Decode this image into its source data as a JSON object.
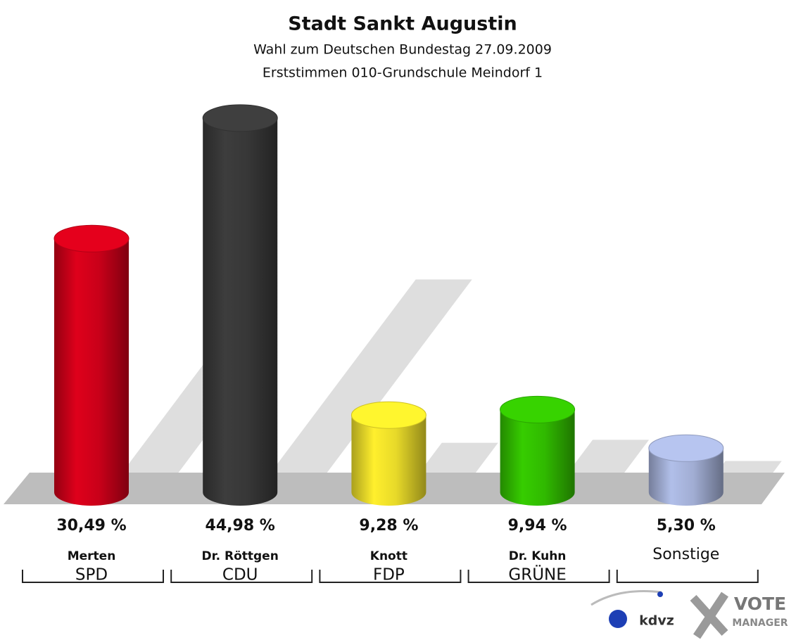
{
  "chart_data": {
    "type": "bar3d",
    "title": "Stadt Sankt Augustin",
    "subtitle": [
      "Wahl zum Deutschen Bundestag 27.09.2009",
      "Erststimmen 010-Grundschule Meindorf 1"
    ],
    "categories": [
      "Merten",
      "Dr. Röttgen",
      "Knott",
      "Dr. Kuhn",
      "Sonstige"
    ],
    "parties": [
      "SPD",
      "CDU",
      "FDP",
      "GRÜNE",
      null
    ],
    "values": [
      30.49,
      44.98,
      9.28,
      9.94,
      5.3
    ],
    "value_labels": [
      "30,49 %",
      "44,98 %",
      "9,28 %",
      "9,94 %",
      "5,30 %"
    ],
    "colors": [
      "#d4001a",
      "#3a3a3a",
      "#f3e42b",
      "#33c300",
      "#a9b6de"
    ]
  },
  "logo": {
    "left": "kdvz",
    "right_top": "VOTE",
    "right_bottom": "MANAGER"
  }
}
